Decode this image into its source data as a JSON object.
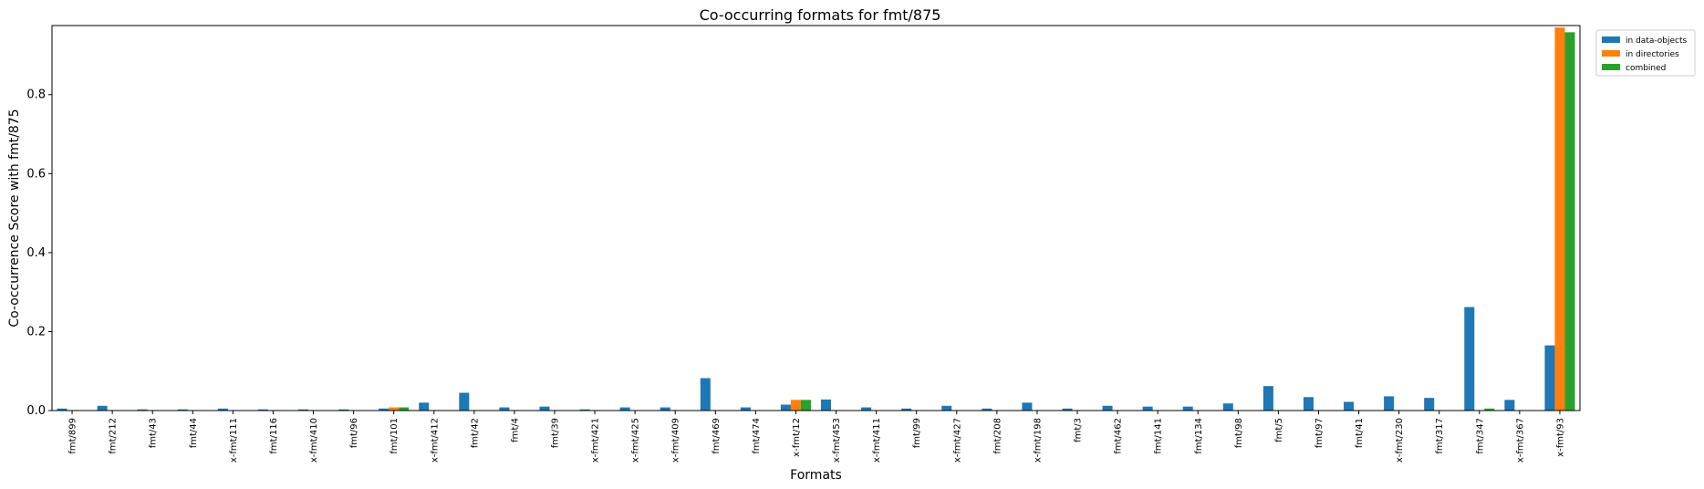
{
  "chart_data": {
    "type": "bar",
    "title": "Co-occurring formats for fmt/875",
    "xlabel": "Formats",
    "ylabel": "Co-occurrence Score with fmt/875",
    "ylim": [
      0,
      0.975
    ],
    "yticks": [
      "0.0",
      "0.2",
      "0.4",
      "0.6",
      "0.8"
    ],
    "ytick_values": [
      0,
      0.2,
      0.4,
      0.6,
      0.8
    ],
    "legend_position": "outside top-right",
    "grid": false,
    "categories": [
      "fmt/899",
      "fmt/212",
      "fmt/43",
      "fmt/44",
      "x-fmt/111",
      "fmt/116",
      "x-fmt/410",
      "fmt/96",
      "fmt/101",
      "x-fmt/412",
      "fmt/42",
      "fmt/4",
      "fmt/39",
      "x-fmt/421",
      "x-fmt/425",
      "x-fmt/409",
      "fmt/469",
      "fmt/474",
      "x-fmt/12",
      "x-fmt/453",
      "x-fmt/411",
      "fmt/99",
      "x-fmt/427",
      "fmt/208",
      "x-fmt/198",
      "fmt/3",
      "fmt/462",
      "fmt/141",
      "fmt/134",
      "fmt/98",
      "fmt/5",
      "fmt/97",
      "fmt/41",
      "x-fmt/230",
      "fmt/317",
      "fmt/347",
      "x-fmt/367",
      "x-fmt/93"
    ],
    "series": [
      {
        "name": "in data-objects",
        "color": "#1f77b4",
        "values": [
          0.005,
          0.012,
          0.003,
          0.003,
          0.005,
          0.003,
          0.003,
          0.003,
          0.005,
          0.02,
          0.045,
          0.008,
          0.01,
          0.003,
          0.008,
          0.008,
          0.082,
          0.008,
          0.015,
          0.028,
          0.008,
          0.005,
          0.012,
          0.005,
          0.02,
          0.005,
          0.012,
          0.01,
          0.01,
          0.018,
          0.062,
          0.034,
          0.022,
          0.036,
          0.032,
          0.262,
          0.027,
          0.165
        ]
      },
      {
        "name": "in directories",
        "color": "#ff7f0e",
        "values": [
          0,
          0,
          0,
          0,
          0,
          0,
          0,
          0,
          0.008,
          0,
          0,
          0,
          0,
          0,
          0,
          0,
          0,
          0,
          0.027,
          0,
          0,
          0,
          0,
          0,
          0,
          0,
          0,
          0,
          0,
          0,
          0,
          0,
          0,
          0,
          0,
          0,
          0,
          0.97
        ]
      },
      {
        "name": "combined",
        "color": "#2ca02c",
        "values": [
          0,
          0,
          0,
          0,
          0,
          0,
          0,
          0,
          0.008,
          0,
          0,
          0,
          0,
          0,
          0,
          0,
          0,
          0,
          0.027,
          0,
          0,
          0,
          0,
          0,
          0,
          0,
          0,
          0,
          0,
          0,
          0,
          0,
          0,
          0,
          0,
          0.005,
          0,
          0.958
        ]
      }
    ]
  }
}
